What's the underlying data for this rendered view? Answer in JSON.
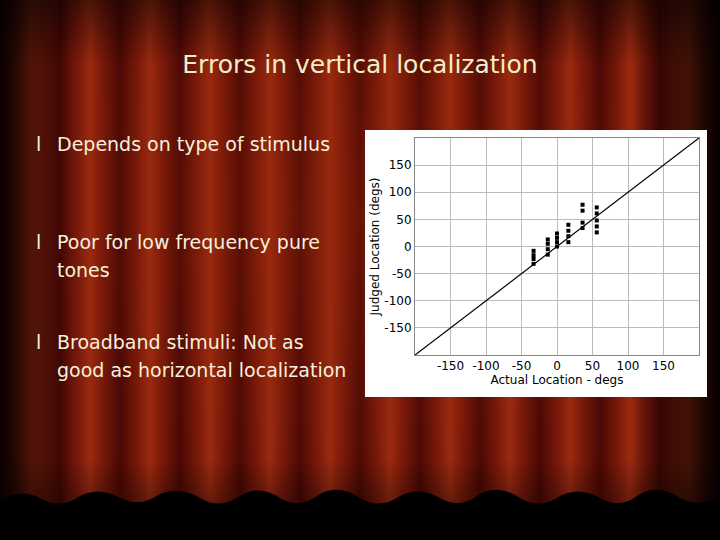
{
  "slide": {
    "title": "Errors in vertical localization",
    "bullet": "l",
    "bullets": [
      "Depends on type of stimulus",
      "Poor for low frequency pure tones",
      "Broadband stimuli: Not as good as horizontal localization"
    ]
  },
  "chart_data": {
    "type": "scatter",
    "x_label": "Actual Location - degs",
    "y_label": "Judged Location (degs)",
    "xlim": [
      -200,
      200
    ],
    "ylim": [
      -200,
      200
    ],
    "xticks": [
      -150,
      -100,
      -50,
      0,
      50,
      100,
      150
    ],
    "yticks": [
      -150,
      -100,
      -50,
      0,
      50,
      100,
      150
    ],
    "grid": true,
    "series": [
      {
        "type": "line",
        "color": "#000000",
        "line_style": "solid",
        "x": [
          -200,
          200
        ],
        "values": [
          -200,
          200
        ]
      },
      {
        "type": "scatter",
        "color": "#000000",
        "marker": "square",
        "x": [
          -33,
          -33,
          -33,
          -33,
          -13,
          -13,
          -13,
          -13,
          0,
          0,
          0,
          0,
          16,
          16,
          16,
          16,
          36,
          36,
          36,
          36,
          56,
          56,
          56,
          56,
          56
        ],
        "values": [
          -8,
          -16,
          -23,
          -32,
          13,
          5,
          -5,
          -15,
          24,
          16,
          8,
          0,
          40,
          29,
          19,
          8,
          77,
          66,
          44,
          34,
          72,
          61,
          48,
          37,
          26
        ]
      }
    ]
  }
}
